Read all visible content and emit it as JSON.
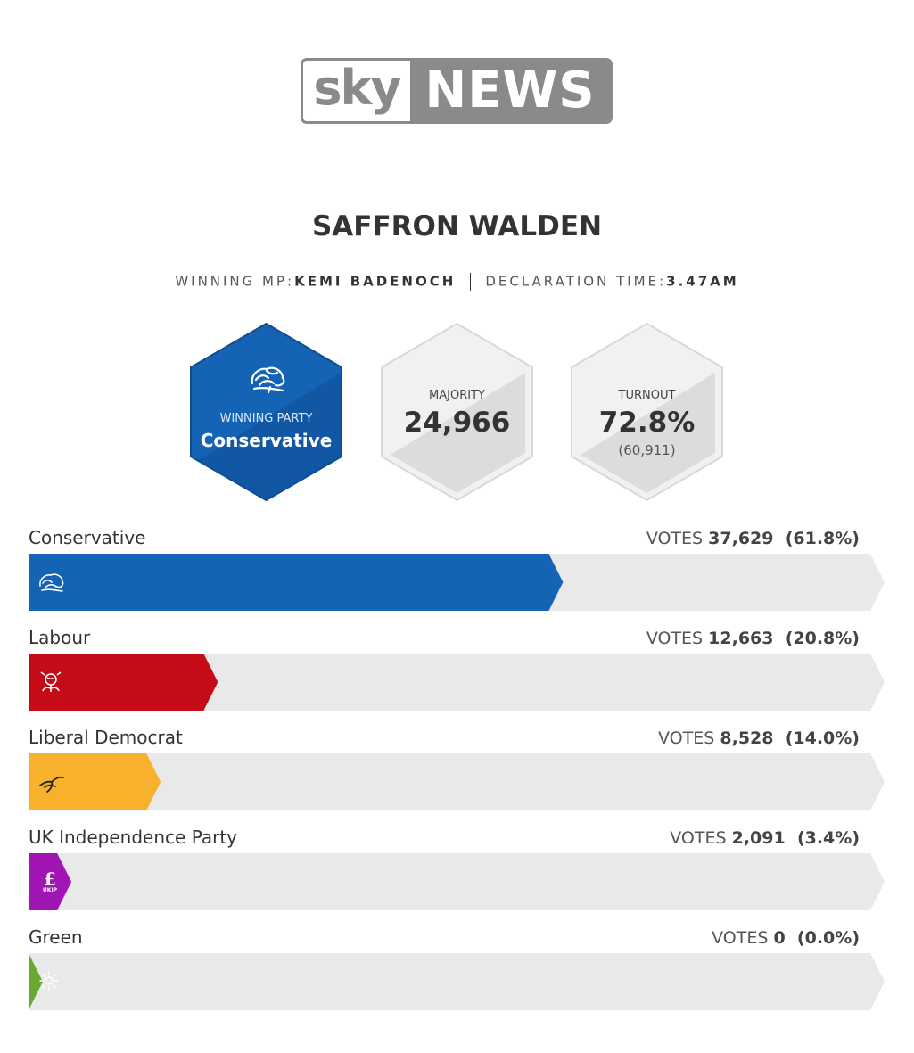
{
  "logo": {
    "left": "sky",
    "right": "NEWS"
  },
  "constituency": "SAFFRON WALDEN",
  "meta": {
    "mp_label": "WINNING MP:",
    "mp_name": "KEMI BADENOCH",
    "time_label": "DECLARATION TIME:",
    "time_value": "3.47AM"
  },
  "winning_party": {
    "label": "WINNING PARTY",
    "name": "Conservative",
    "color": "#1463b5"
  },
  "majority": {
    "label": "MAJORITY",
    "value": "24,966"
  },
  "turnout": {
    "label": "TURNOUT",
    "value": "72.8%",
    "count": "(60,911)"
  },
  "votes_label": "VOTES",
  "chart_data": {
    "type": "bar",
    "categories": [
      "Conservative",
      "Labour",
      "Liberal Democrat",
      "UK Independence Party",
      "Green"
    ],
    "values": [
      37629,
      12663,
      8528,
      2091,
      0
    ],
    "value_labels": [
      "37,629",
      "12,663",
      "8,528",
      "2,091",
      "0"
    ],
    "percent_labels": [
      "(61.8%)",
      "(20.8%)",
      "(14.0%)",
      "(3.4%)",
      "(0.0%)"
    ],
    "percents": [
      61.8,
      20.8,
      14.0,
      3.4,
      0.0
    ],
    "colors": [
      "#1463b5",
      "#c50c16",
      "#f7b12c",
      "#a115b4",
      "#69a932"
    ],
    "icons": [
      "conservative-tree-icon",
      "labour-rose-icon",
      "libdem-bird-icon",
      "ukip-pound-icon",
      "green-sun-icon"
    ],
    "xlim": [
      0,
      100
    ]
  }
}
